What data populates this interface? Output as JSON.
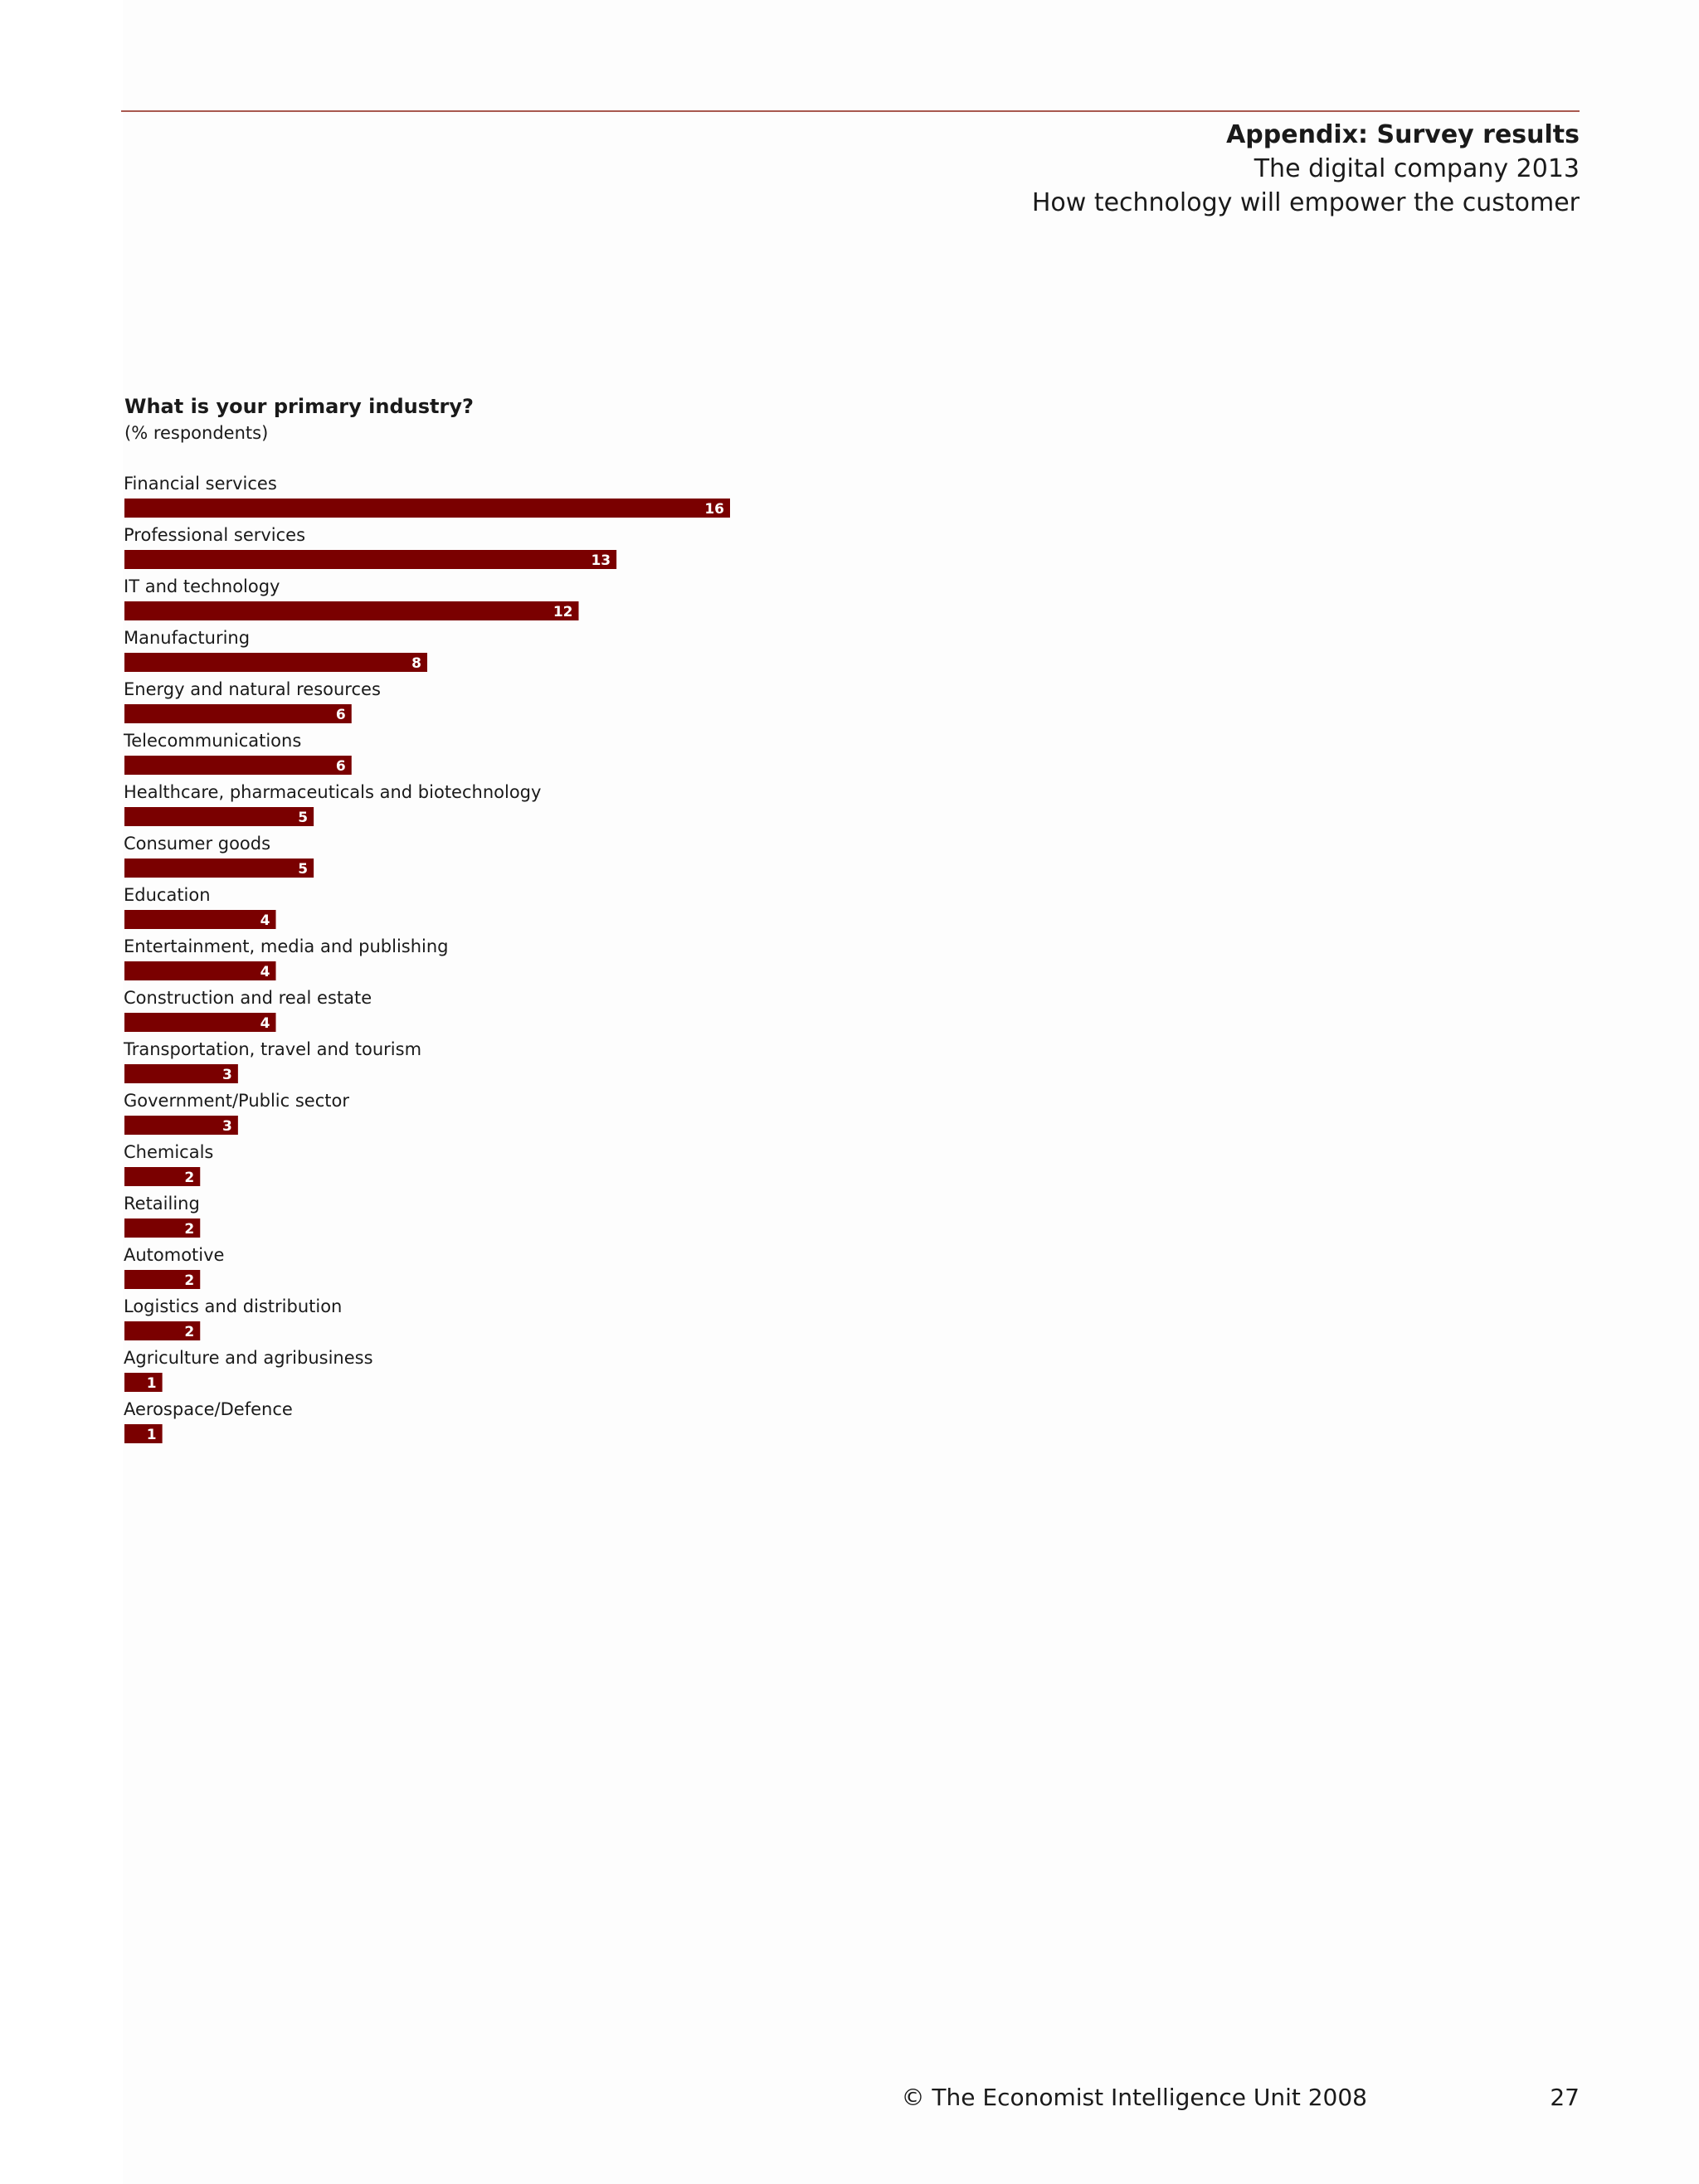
{
  "header": {
    "section": "Appendix: Survey results",
    "report": "The digital company 2013",
    "subtitle": "How technology will empower the customer"
  },
  "colors": {
    "bar": "#7a0000",
    "rule": "#a8584f",
    "value_label": "#ffffff"
  },
  "chart_data": {
    "type": "bar",
    "orientation": "horizontal",
    "title": "What is your primary industry?",
    "subtitle": "(% respondents)",
    "categories": [
      "Financial services",
      "Professional services",
      "IT and technology",
      "Manufacturing",
      "Energy and natural resources",
      "Telecommunications",
      "Healthcare, pharmaceuticals and biotechnology",
      "Consumer goods",
      "Education",
      "Entertainment, media and publishing",
      "Construction and real estate",
      "Transportation, travel and tourism",
      "Government/Public sector",
      "Chemicals",
      "Retailing",
      "Automotive",
      "Logistics and distribution",
      "Agriculture and agribusiness",
      "Aerospace/Defence"
    ],
    "values": [
      16,
      13,
      12,
      8,
      6,
      6,
      5,
      5,
      4,
      4,
      4,
      3,
      3,
      2,
      2,
      2,
      2,
      1,
      1
    ],
    "data_labels": true,
    "grid": false,
    "xlim": [
      0,
      16
    ]
  },
  "footer": {
    "copyright": "© The Economist Intelligence Unit 2008",
    "page_number": "27"
  }
}
